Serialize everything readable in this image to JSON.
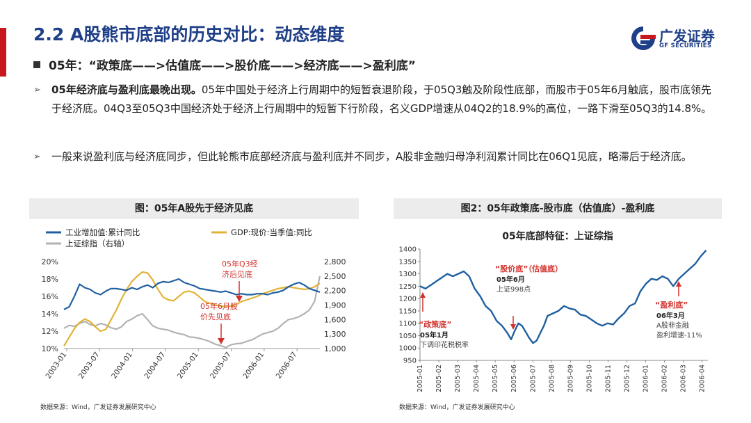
{
  "header": {
    "title": "2.2 A股熊市底部的历史对比：动态维度",
    "logo_cn": "广发证券",
    "logo_en": "GF SECURITIES"
  },
  "subhead": "05年：“政策底——>估值底——>股价底——>经济底——>盈利底”",
  "bullets": [
    {
      "bold": "05年经济底与盈利底最晚出现。",
      "text": "05年中国处于经济上行周期中的短暂衰退阶段，于05Q3触及阶段性底部，而股市于05年6月触底，股市底领先于经济底。04Q3至05Q3中国经济处于经济上行周期中的短暂下行阶段，名义GDP增速从04Q2的18.9%的高位，一路下滑至05Q3的14.8%。"
    },
    {
      "bold": "",
      "text": "一般来说盈利底与经济底同步，但此轮熊市底部经济底与盈利底并不同步，A股非金融归母净利润累计同比在06Q1见底，略滞后于经济底。"
    }
  ],
  "figures": [
    {
      "title": "图：05年A股先于经济见底",
      "source": "数据来源：Wind，广发证券发展研究中心"
    },
    {
      "title": "图2：05年政策底-股市底（估值底）-盈利底",
      "source": "数据来源：Wind，广发证券发展研究中心"
    }
  ],
  "colors": {
    "brand_blue": "#1f3f88",
    "accent_red": "#c8181e",
    "line_blue": "#1f5fa0",
    "line_gold": "#e2b236",
    "line_gray": "#b2b2b2",
    "annot_red": "#d2322d"
  },
  "chart_data": [
    {
      "type": "line",
      "title": "",
      "legend": [
        "工业增加值:累计同比",
        "GDP:现价:当季值:同比",
        "上证综指（右轴）"
      ],
      "x_ticks": [
        "2003-01",
        "2003-07",
        "2004-01",
        "2004-07",
        "2005-01",
        "2005-07",
        "2006-01",
        "2006-07"
      ],
      "y_left_ticks": [
        "20%",
        "18%",
        "16%",
        "14%",
        "12%",
        "10%"
      ],
      "y_right_ticks": [
        "2,800",
        "2,500",
        "2,200",
        "1,900",
        "1,600",
        "1,300",
        "1,000"
      ],
      "ylim_left": [
        10,
        20
      ],
      "ylim_right": [
        1000,
        2800
      ],
      "series": [
        {
          "name": "工业增加值:累计同比",
          "axis": "left",
          "color": "#1f5fa0",
          "points": [
            [
              0,
              14.5
            ],
            [
              1,
              14.8
            ],
            [
              2,
              16.0
            ],
            [
              3,
              17.4
            ],
            [
              4,
              17.0
            ],
            [
              5,
              16.8
            ],
            [
              6,
              16.4
            ],
            [
              7,
              16.2
            ],
            [
              8,
              16.6
            ],
            [
              9,
              16.9
            ],
            [
              10,
              16.9
            ],
            [
              11,
              16.8
            ],
            [
              12,
              16.7
            ],
            [
              13,
              17.0
            ],
            [
              14,
              16.8
            ],
            [
              15,
              17.1
            ],
            [
              16,
              17.3
            ],
            [
              17,
              17.0
            ],
            [
              18,
              17.5
            ],
            [
              19,
              17.7
            ],
            [
              20,
              17.6
            ],
            [
              21,
              17.8
            ],
            [
              22,
              18.0
            ],
            [
              23,
              17.6
            ],
            [
              24,
              17.4
            ],
            [
              25,
              17.2
            ],
            [
              26,
              16.9
            ],
            [
              27,
              16.8
            ],
            [
              28,
              16.7
            ],
            [
              29,
              16.6
            ],
            [
              30,
              16.5
            ],
            [
              31,
              16.6
            ],
            [
              32,
              16.4
            ],
            [
              33,
              16.2
            ],
            [
              34,
              16.3
            ],
            [
              35,
              16.2
            ],
            [
              36,
              16.2
            ],
            [
              37,
              16.3
            ],
            [
              38,
              16.3
            ],
            [
              39,
              16.2
            ],
            [
              40,
              16.4
            ],
            [
              41,
              16.5
            ],
            [
              42,
              16.7
            ],
            [
              43,
              17.1
            ],
            [
              44,
              17.4
            ],
            [
              45,
              17.6
            ],
            [
              46,
              17.3
            ],
            [
              47,
              16.9
            ],
            [
              48,
              16.7
            ],
            [
              49,
              16.5
            ]
          ]
        },
        {
          "name": "GDP:现价:当季值:同比",
          "axis": "left",
          "color": "#e2b236",
          "points": [
            [
              0,
              10.3
            ],
            [
              1,
              11.3
            ],
            [
              2,
              12.3
            ],
            [
              3,
              13.0
            ],
            [
              4,
              13.4
            ],
            [
              5,
              13.1
            ],
            [
              6,
              12.5
            ],
            [
              7,
              12.0
            ],
            [
              8,
              12.2
            ],
            [
              9,
              13.3
            ],
            [
              10,
              14.4
            ],
            [
              11,
              15.7
            ],
            [
              12,
              16.8
            ],
            [
              13,
              17.7
            ],
            [
              14,
              18.3
            ],
            [
              15,
              18.8
            ],
            [
              16,
              18.7
            ],
            [
              17,
              17.9
            ],
            [
              18,
              16.8
            ],
            [
              19,
              15.9
            ],
            [
              20,
              15.6
            ],
            [
              21,
              15.5
            ],
            [
              22,
              16.0
            ],
            [
              23,
              16.5
            ],
            [
              24,
              16.6
            ],
            [
              25,
              16.4
            ],
            [
              26,
              15.9
            ],
            [
              27,
              15.4
            ],
            [
              28,
              15.2
            ],
            [
              29,
              15.0
            ],
            [
              30,
              14.9
            ],
            [
              31,
              14.8
            ],
            [
              32,
              14.9
            ],
            [
              33,
              15.1
            ],
            [
              34,
              15.4
            ],
            [
              35,
              15.6
            ],
            [
              36,
              15.8
            ],
            [
              37,
              16.0
            ],
            [
              38,
              16.3
            ],
            [
              39,
              16.5
            ],
            [
              40,
              16.7
            ],
            [
              41,
              16.9
            ],
            [
              42,
              17.0
            ],
            [
              43,
              17.1
            ],
            [
              44,
              17.0
            ],
            [
              45,
              16.9
            ],
            [
              46,
              16.8
            ],
            [
              47,
              16.9
            ],
            [
              48,
              17.1
            ],
            [
              49,
              17.5
            ]
          ]
        },
        {
          "name": "上证综指（右轴）",
          "axis": "right",
          "color": "#b2b2b2",
          "points": [
            [
              0,
              1420
            ],
            [
              1,
              1480
            ],
            [
              2,
              1460
            ],
            [
              3,
              1520
            ],
            [
              4,
              1560
            ],
            [
              5,
              1500
            ],
            [
              6,
              1470
            ],
            [
              7,
              1520
            ],
            [
              8,
              1490
            ],
            [
              9,
              1430
            ],
            [
              10,
              1400
            ],
            [
              11,
              1450
            ],
            [
              12,
              1560
            ],
            [
              13,
              1610
            ],
            [
              14,
              1680
            ],
            [
              15,
              1720
            ],
            [
              16,
              1600
            ],
            [
              17,
              1470
            ],
            [
              18,
              1420
            ],
            [
              19,
              1400
            ],
            [
              20,
              1380
            ],
            [
              21,
              1340
            ],
            [
              22,
              1310
            ],
            [
              23,
              1290
            ],
            [
              24,
              1240
            ],
            [
              25,
              1230
            ],
            [
              26,
              1210
            ],
            [
              27,
              1180
            ],
            [
              28,
              1140
            ],
            [
              29,
              1090
            ],
            [
              30,
              1060
            ],
            [
              31,
              1020
            ],
            [
              32,
              1080
            ],
            [
              33,
              1100
            ],
            [
              34,
              1110
            ],
            [
              35,
              1150
            ],
            [
              36,
              1180
            ],
            [
              37,
              1240
            ],
            [
              38,
              1300
            ],
            [
              39,
              1330
            ],
            [
              40,
              1360
            ],
            [
              41,
              1420
            ],
            [
              42,
              1520
            ],
            [
              43,
              1600
            ],
            [
              44,
              1620
            ],
            [
              45,
              1660
            ],
            [
              46,
              1720
            ],
            [
              47,
              1800
            ],
            [
              48,
              1980
            ],
            [
              49,
              2500
            ]
          ]
        }
      ],
      "annotations": [
        "05年Q3经济后见底",
        "05年6月股价先见底"
      ]
    },
    {
      "type": "line",
      "title": "05年底部特征：上证综指",
      "x_ticks": [
        "2005-01",
        "2005-02",
        "2005-03",
        "2005-04",
        "2005-05",
        "2005-06",
        "2005-07",
        "2005-08",
        "2005-09",
        "2005-10",
        "2005-11",
        "2005-12",
        "2006-01",
        "2006-02",
        "2006-03",
        "2006-04"
      ],
      "y_ticks": [
        "1400",
        "1350",
        "1300",
        "1250",
        "1200",
        "1150",
        "1100",
        "1050",
        "1000",
        "950"
      ],
      "ylim": [
        950,
        1400
      ],
      "series": [
        {
          "name": "",
          "color": "#1f5fa0",
          "points": [
            [
              0,
              1250
            ],
            [
              0.3,
              1240
            ],
            [
              0.6,
              1255
            ],
            [
              0.9,
              1270
            ],
            [
              1.2,
              1285
            ],
            [
              1.5,
              1300
            ],
            [
              1.8,
              1290
            ],
            [
              2.1,
              1300
            ],
            [
              2.4,
              1310
            ],
            [
              2.7,
              1290
            ],
            [
              3.0,
              1240
            ],
            [
              3.3,
              1210
            ],
            [
              3.6,
              1170
            ],
            [
              3.9,
              1150
            ],
            [
              4.2,
              1110
            ],
            [
              4.5,
              1090
            ],
            [
              4.8,
              1060
            ],
            [
              5.0,
              1035
            ],
            [
              5.2,
              1070
            ],
            [
              5.4,
              1100
            ],
            [
              5.6,
              1090
            ],
            [
              5.8,
              1065
            ],
            [
              6.0,
              1040
            ],
            [
              6.2,
              1020
            ],
            [
              6.4,
              1030
            ],
            [
              6.6,
              1060
            ],
            [
              6.8,
              1090
            ],
            [
              7.0,
              1130
            ],
            [
              7.3,
              1140
            ],
            [
              7.6,
              1150
            ],
            [
              7.9,
              1170
            ],
            [
              8.2,
              1160
            ],
            [
              8.5,
              1155
            ],
            [
              8.8,
              1135
            ],
            [
              9.1,
              1130
            ],
            [
              9.4,
              1115
            ],
            [
              9.7,
              1100
            ],
            [
              10.0,
              1090
            ],
            [
              10.3,
              1100
            ],
            [
              10.6,
              1095
            ],
            [
              10.9,
              1120
            ],
            [
              11.2,
              1140
            ],
            [
              11.5,
              1170
            ],
            [
              11.8,
              1180
            ],
            [
              12.1,
              1230
            ],
            [
              12.4,
              1260
            ],
            [
              12.7,
              1280
            ],
            [
              13.0,
              1275
            ],
            [
              13.3,
              1290
            ],
            [
              13.6,
              1280
            ],
            [
              13.9,
              1250
            ],
            [
              14.2,
              1280
            ],
            [
              14.5,
              1300
            ],
            [
              14.8,
              1320
            ],
            [
              15.1,
              1340
            ],
            [
              15.4,
              1370
            ],
            [
              15.7,
              1395
            ]
          ]
        }
      ],
      "annotations": [
        {
          "label": "“政策底”",
          "date": "05年1月",
          "note": "下调印花税税率"
        },
        {
          "label": "“股价底”（估值底）",
          "date": "05年6月",
          "note": "上证998点"
        },
        {
          "label": "“盈利底”",
          "date": "06年3月",
          "note1": "A股非金融",
          "note2": "盈利增速-11%"
        }
      ]
    }
  ]
}
